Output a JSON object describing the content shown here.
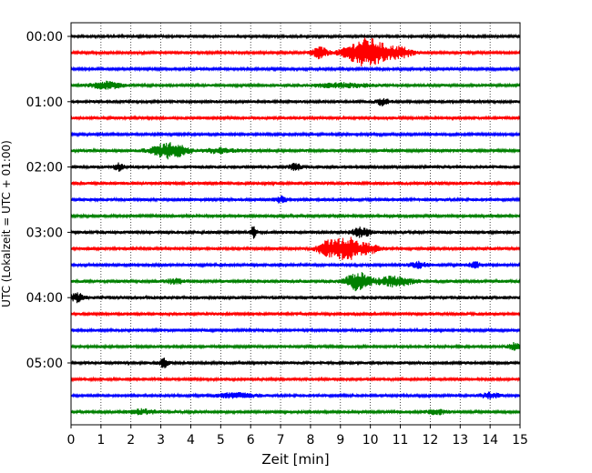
{
  "chart_data": {
    "type": "line",
    "title": "",
    "xlabel": "Zeit  [min]",
    "ylabel": "UTC (Lokalzeit = UTC + 01:00)",
    "xlim": [
      0,
      15
    ],
    "x_ticks": [
      0,
      1,
      2,
      3,
      4,
      5,
      6,
      7,
      8,
      9,
      10,
      11,
      12,
      13,
      14,
      15
    ],
    "x_tick_labels": [
      "0",
      "1",
      "2",
      "3",
      "4",
      "5",
      "6",
      "7",
      "8",
      "9",
      "10",
      "11",
      "12",
      "13",
      "14",
      "15"
    ],
    "grid": "vertical dotted",
    "y_tick_labels": [
      "00:00",
      "01:00",
      "02:00",
      "03:00",
      "04:00",
      "05:00"
    ],
    "y_tick_trace_index": [
      0,
      4,
      8,
      12,
      16,
      20
    ],
    "color_cycle": [
      "#000000",
      "#ff0000",
      "#0000ff",
      "#008000"
    ],
    "traces": [
      {
        "start": "00:00",
        "color": "#000000",
        "noise": 0.3,
        "events": []
      },
      {
        "start": "00:15",
        "color": "#ff0000",
        "noise": 0.28,
        "events": [
          {
            "t": 8.3,
            "amp": 1.2,
            "w": 0.25
          },
          {
            "t": 9.9,
            "amp": 3.0,
            "w": 0.7
          },
          {
            "t": 11.0,
            "amp": 1.0,
            "w": 0.4
          }
        ]
      },
      {
        "start": "00:30",
        "color": "#0000ff",
        "noise": 0.25,
        "events": []
      },
      {
        "start": "00:45",
        "color": "#008000",
        "noise": 0.3,
        "events": [
          {
            "t": 1.2,
            "amp": 0.7,
            "w": 0.5
          },
          {
            "t": 9.0,
            "amp": 0.4,
            "w": 1.0
          }
        ]
      },
      {
        "start": "01:00",
        "color": "#000000",
        "noise": 0.32,
        "events": [
          {
            "t": 10.4,
            "amp": 0.7,
            "w": 0.2
          }
        ]
      },
      {
        "start": "01:15",
        "color": "#ff0000",
        "noise": 0.3,
        "events": []
      },
      {
        "start": "01:30",
        "color": "#0000ff",
        "noise": 0.26,
        "events": []
      },
      {
        "start": "01:45",
        "color": "#008000",
        "noise": 0.3,
        "events": [
          {
            "t": 3.3,
            "amp": 1.6,
            "w": 0.6
          },
          {
            "t": 5.0,
            "amp": 0.5,
            "w": 0.5
          }
        ]
      },
      {
        "start": "02:00",
        "color": "#000000",
        "noise": 0.34,
        "events": [
          {
            "t": 1.6,
            "amp": 0.7,
            "w": 0.15
          },
          {
            "t": 7.5,
            "amp": 0.6,
            "w": 0.2
          }
        ]
      },
      {
        "start": "02:15",
        "color": "#ff0000",
        "noise": 0.32,
        "events": []
      },
      {
        "start": "02:30",
        "color": "#0000ff",
        "noise": 0.3,
        "events": [
          {
            "t": 7.0,
            "amp": 0.7,
            "w": 0.2
          }
        ]
      },
      {
        "start": "02:45",
        "color": "#008000",
        "noise": 0.28,
        "events": []
      },
      {
        "start": "03:00",
        "color": "#000000",
        "noise": 0.32,
        "events": [
          {
            "t": 6.1,
            "amp": 1.3,
            "w": 0.1
          },
          {
            "t": 9.7,
            "amp": 1.0,
            "w": 0.3
          }
        ]
      },
      {
        "start": "03:15",
        "color": "#ff0000",
        "noise": 0.3,
        "events": [
          {
            "t": 8.5,
            "amp": 1.2,
            "w": 0.3
          },
          {
            "t": 9.2,
            "amp": 2.4,
            "w": 0.5
          },
          {
            "t": 10.0,
            "amp": 0.8,
            "w": 0.3
          }
        ]
      },
      {
        "start": "03:30",
        "color": "#0000ff",
        "noise": 0.28,
        "events": [
          {
            "t": 11.6,
            "amp": 0.6,
            "w": 0.3
          },
          {
            "t": 13.5,
            "amp": 0.6,
            "w": 0.2
          }
        ]
      },
      {
        "start": "03:45",
        "color": "#008000",
        "noise": 0.32,
        "events": [
          {
            "t": 9.6,
            "amp": 1.9,
            "w": 0.4
          },
          {
            "t": 10.8,
            "amp": 1.0,
            "w": 0.6
          },
          {
            "t": 3.5,
            "amp": 0.5,
            "w": 0.3
          }
        ]
      },
      {
        "start": "04:00",
        "color": "#000000",
        "noise": 0.36,
        "events": [
          {
            "t": 0.2,
            "amp": 0.9,
            "w": 0.2
          }
        ]
      },
      {
        "start": "04:15",
        "color": "#ff0000",
        "noise": 0.32,
        "events": []
      },
      {
        "start": "04:30",
        "color": "#0000ff",
        "noise": 0.3,
        "events": []
      },
      {
        "start": "04:45",
        "color": "#008000",
        "noise": 0.3,
        "events": [
          {
            "t": 14.8,
            "amp": 0.7,
            "w": 0.2
          }
        ]
      },
      {
        "start": "05:00",
        "color": "#000000",
        "noise": 0.32,
        "events": [
          {
            "t": 3.1,
            "amp": 0.9,
            "w": 0.15
          }
        ]
      },
      {
        "start": "05:15",
        "color": "#ff0000",
        "noise": 0.3,
        "events": []
      },
      {
        "start": "05:30",
        "color": "#0000ff",
        "noise": 0.3,
        "events": [
          {
            "t": 5.5,
            "amp": 0.5,
            "w": 0.6
          },
          {
            "t": 14.0,
            "amp": 0.6,
            "w": 0.3
          }
        ]
      },
      {
        "start": "05:45",
        "color": "#008000",
        "noise": 0.3,
        "events": [
          {
            "t": 2.4,
            "amp": 0.5,
            "w": 0.4
          },
          {
            "t": 12.2,
            "amp": 0.5,
            "w": 0.3
          }
        ]
      }
    ]
  }
}
